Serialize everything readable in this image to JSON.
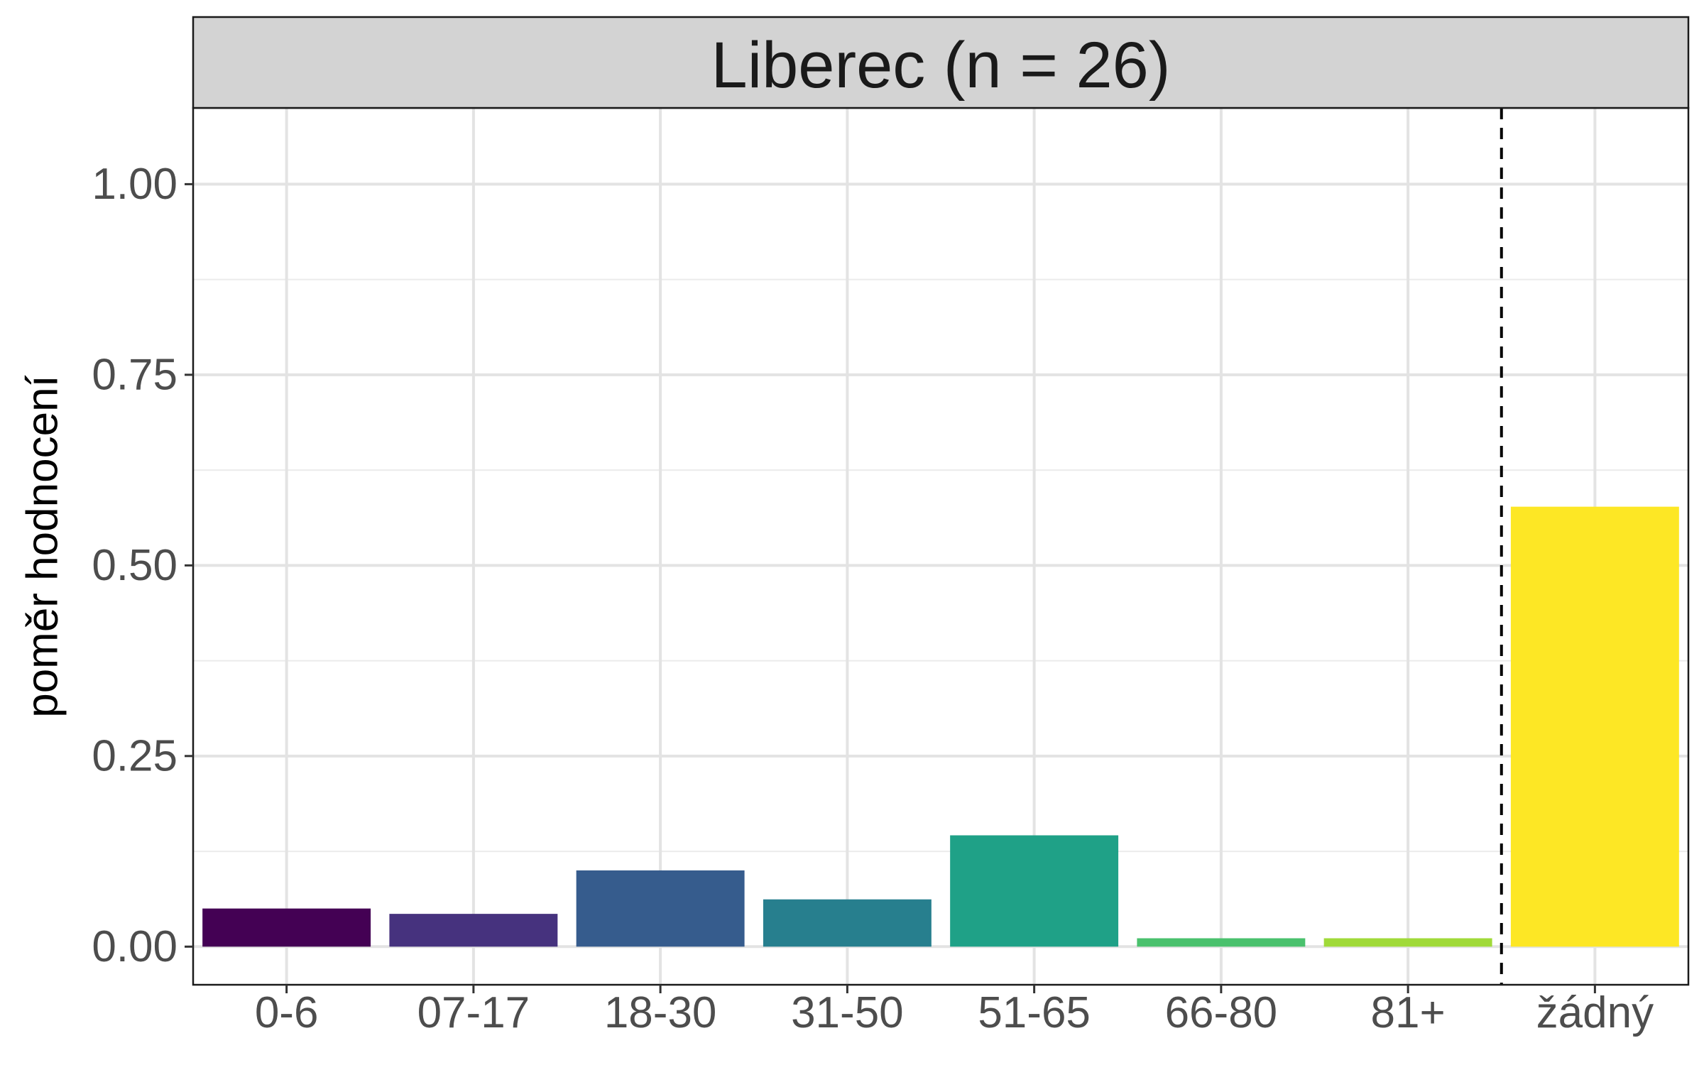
{
  "chart_data": {
    "type": "bar",
    "facet_title": "Liberec (n = 26)",
    "ylabel": "poměr hodnocení",
    "xlabel": "",
    "categories": [
      "0-6",
      "07-17",
      "18-30",
      "31-50",
      "51-65",
      "66-80",
      "81+",
      "žádný"
    ],
    "values": [
      0.05,
      0.043,
      0.1,
      0.062,
      0.146,
      0.011,
      0.011,
      0.577
    ],
    "colors": [
      "#440154",
      "#46327E",
      "#365C8D",
      "#277F8E",
      "#1FA187",
      "#4AC16D",
      "#A0DA39",
      "#FDE725"
    ],
    "ylim": [
      -0.05,
      1.1
    ],
    "yticks": [
      0.0,
      0.25,
      0.5,
      0.75,
      1.0
    ],
    "ytick_labels": [
      "0.00",
      "0.25",
      "0.50",
      "0.75",
      "1.00"
    ],
    "reference_line": {
      "between": [
        "81+",
        "žádný"
      ],
      "style": "dashed"
    },
    "grid": true
  }
}
